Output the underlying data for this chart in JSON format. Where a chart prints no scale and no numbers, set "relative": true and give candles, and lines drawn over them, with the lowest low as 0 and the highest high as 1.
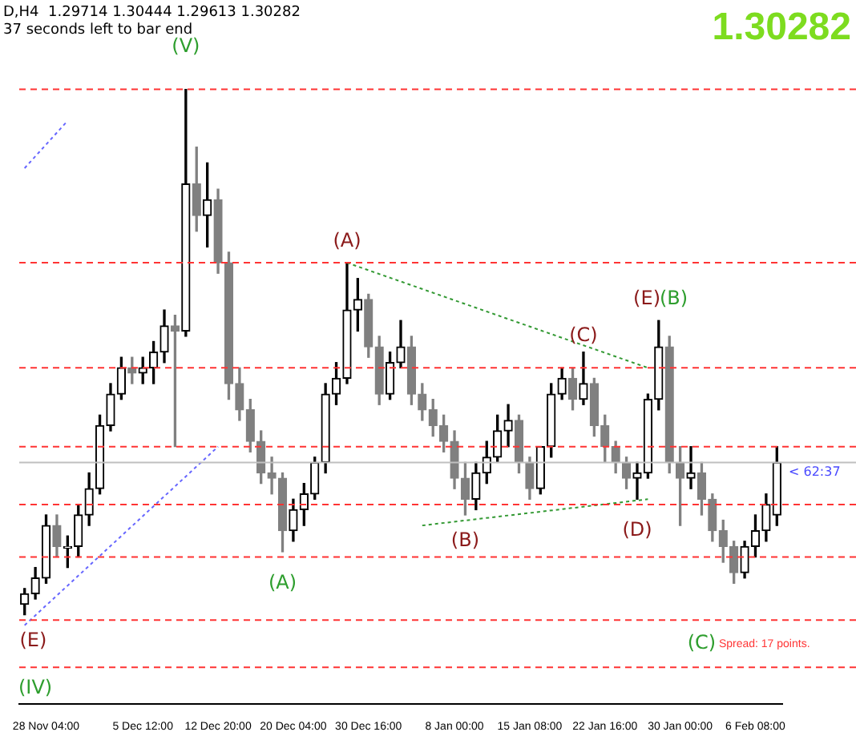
{
  "chart_data": {
    "type": "candlestick",
    "relative": true,
    "title": "D,H4  1.29714 1.30444 1.29613 1.30282",
    "subtitle": "37 seconds left to bar end",
    "colors": [
      "#000000",
      "#000000",
      "#000000",
      "#808080",
      "#000000",
      "#000000",
      "#000000",
      "#000000",
      "#000000",
      "#000000",
      "#808080",
      "#000000",
      "#000000",
      "#000000",
      "#808080",
      "#000000",
      "#808080",
      "#000000",
      "#808080",
      "#808080",
      "#808080",
      "#808080",
      "#808080",
      "#808080",
      "#808080",
      "#000000",
      "#000000",
      "#000000",
      "#000000",
      "#000000",
      "#000000",
      "#000000",
      "#808080",
      "#808080",
      "#000000",
      "#000000",
      "#808080",
      "#808080",
      "#808080",
      "#808080",
      "#808080",
      "#808080",
      "#000000",
      "#000000",
      "#000000",
      "#000000",
      "#808080",
      "#808080",
      "#000000",
      "#000000",
      "#000000",
      "#808080",
      "#000000",
      "#808080",
      "#808080",
      "#808080",
      "#808080",
      "#000000",
      "#000000",
      "#000000",
      "#808080",
      "#808080",
      "#000000",
      "#808080",
      "#808080",
      "#808080",
      "#808080",
      "#000000",
      "#000000",
      "#000000",
      "#000000"
    ],
    "grid": false,
    "legend": false,
    "tick_labels": "x",
    "line_style": "dotted",
    "categories": [
      null,
      null,
      "28 Nov 04:00",
      null,
      null,
      null,
      null,
      null,
      null,
      null,
      null,
      "5 Dec 12:00",
      null,
      null,
      null,
      null,
      null,
      null,
      "12 Dec 20:00",
      null,
      null,
      null,
      null,
      null,
      null,
      "20 Dec 04:00",
      null,
      null,
      null,
      null,
      null,
      null,
      "30 Dec 16:00",
      null,
      null,
      null,
      null,
      null,
      null,
      null,
      "8 Jan 00:00",
      null,
      null,
      null,
      null,
      null,
      null,
      "15 Jan 08:00",
      null,
      null,
      null,
      null,
      null,
      null,
      "22 Jan 16:00",
      null,
      null,
      null,
      null,
      null,
      null,
      "30 Jan 00:00",
      null,
      null,
      null,
      null,
      null,
      null,
      "6 Feb 08:00",
      null,
      null
    ],
    "ohlc": [
      [
        0.02,
        0.05,
        0,
        0.04
      ],
      [
        0.04,
        0.09,
        0.03,
        0.07
      ],
      [
        0.07,
        0.19,
        0.06,
        0.17
      ],
      [
        0.17,
        0.19,
        0.11,
        0.13
      ],
      [
        0.13,
        0.15,
        0.09,
        0.13
      ],
      [
        0.13,
        0.21,
        0.11,
        0.19
      ],
      [
        0.19,
        0.27,
        0.17,
        0.24
      ],
      [
        0.24,
        0.38,
        0.23,
        0.36
      ],
      [
        0.36,
        0.44,
        0.35,
        0.42
      ],
      [
        0.42,
        0.49,
        0.41,
        0.47
      ],
      [
        0.47,
        0.49,
        0.44,
        0.46
      ],
      [
        0.46,
        0.49,
        0.44,
        0.47
      ],
      [
        0.47,
        0.52,
        0.44,
        0.5
      ],
      [
        0.5,
        0.58,
        0.48,
        0.55
      ],
      [
        0.55,
        0.57,
        0.32,
        0.54
      ],
      [
        0.54,
        1,
        0.53,
        0.82
      ],
      [
        0.82,
        0.89,
        0.73,
        0.76
      ],
      [
        0.76,
        0.86,
        0.7,
        0.79
      ],
      [
        0.79,
        0.81,
        0.65,
        0.67
      ],
      [
        0.67,
        0.69,
        0.41,
        0.44
      ],
      [
        0.44,
        0.47,
        0.37,
        0.39
      ],
      [
        0.39,
        0.41,
        0.31,
        0.33
      ],
      [
        0.33,
        0.35,
        0.25,
        0.27
      ],
      [
        0.27,
        0.3,
        0.23,
        0.26
      ],
      [
        0.26,
        0.27,
        0.12,
        0.16
      ],
      [
        0.16,
        0.22,
        0.14,
        0.2
      ],
      [
        0.2,
        0.25,
        0.17,
        0.23
      ],
      [
        0.23,
        0.3,
        0.22,
        0.29
      ],
      [
        0.29,
        0.44,
        0.27,
        0.42
      ],
      [
        0.42,
        0.48,
        0.4,
        0.45
      ],
      [
        0.45,
        0.67,
        0.44,
        0.58
      ],
      [
        0.58,
        0.64,
        0.54,
        0.6
      ],
      [
        0.6,
        0.61,
        0.49,
        0.51
      ],
      [
        0.51,
        0.53,
        0.4,
        0.42
      ],
      [
        0.42,
        0.5,
        0.41,
        0.48
      ],
      [
        0.48,
        0.56,
        0.47,
        0.51
      ],
      [
        0.51,
        0.53,
        0.4,
        0.42
      ],
      [
        0.42,
        0.44,
        0.37,
        0.39
      ],
      [
        0.39,
        0.41,
        0.34,
        0.36
      ],
      [
        0.36,
        0.38,
        0.31,
        0.33
      ],
      [
        0.33,
        0.35,
        0.24,
        0.26
      ],
      [
        0.26,
        0.29,
        0.19,
        0.22
      ],
      [
        0.22,
        0.29,
        0.2,
        0.27
      ],
      [
        0.27,
        0.33,
        0.25,
        0.3
      ],
      [
        0.3,
        0.38,
        0.29,
        0.35
      ],
      [
        0.35,
        0.4,
        0.32,
        0.37
      ],
      [
        0.37,
        0.38,
        0.27,
        0.29
      ],
      [
        0.29,
        0.3,
        0.22,
        0.24
      ],
      [
        0.24,
        0.32,
        0.23,
        0.32
      ],
      [
        0.32,
        0.44,
        0.3,
        0.42
      ],
      [
        0.42,
        0.47,
        0.41,
        0.45
      ],
      [
        0.45,
        0.47,
        0.39,
        0.41
      ],
      [
        0.41,
        0.5,
        0.4,
        0.44
      ],
      [
        0.44,
        0.45,
        0.34,
        0.36
      ],
      [
        0.36,
        0.38,
        0.29,
        0.32
      ],
      [
        0.32,
        0.33,
        0.27,
        0.29
      ],
      [
        0.29,
        0.3,
        0.24,
        0.26
      ],
      [
        0.26,
        0.29,
        0.22,
        0.27
      ],
      [
        0.27,
        0.42,
        0.26,
        0.41
      ],
      [
        0.41,
        0.56,
        0.39,
        0.51
      ],
      [
        0.51,
        0.53,
        0.27,
        0.29
      ],
      [
        0.29,
        0.32,
        0.17,
        0.26
      ],
      [
        0.26,
        0.32,
        0.24,
        0.27
      ],
      [
        0.27,
        0.29,
        0.19,
        0.22
      ],
      [
        0.22,
        0.23,
        0.14,
        0.16
      ],
      [
        0.16,
        0.18,
        0.1,
        0.13
      ],
      [
        0.13,
        0.14,
        0.06,
        0.08
      ],
      [
        0.08,
        0.14,
        0.07,
        0.13
      ],
      [
        0.13,
        0.19,
        0.11,
        0.16
      ],
      [
        0.16,
        0.23,
        0.14,
        0.21
      ],
      [
        0.19,
        0.32,
        0.17,
        0.29
      ]
    ],
    "series": [
      {
        "type": "line",
        "color": "#339933",
        "values": [
          null,
          null,
          null,
          null,
          null,
          null,
          null,
          null,
          null,
          null,
          null,
          null,
          null,
          null,
          null,
          null,
          null,
          null,
          null,
          null,
          null,
          null,
          null,
          null,
          null,
          null,
          null,
          null,
          null,
          null,
          0.67,
          null,
          null,
          null,
          null,
          null,
          null,
          null,
          null,
          null,
          null,
          null,
          null,
          null,
          null,
          null,
          null,
          null,
          null,
          null,
          null,
          null,
          null,
          null,
          null,
          null,
          null,
          null,
          0.47,
          null,
          null,
          null,
          null,
          null,
          null,
          null,
          null,
          null,
          null,
          null,
          null
        ]
      },
      {
        "type": "line",
        "color": "#339933",
        "values": [
          null,
          null,
          null,
          null,
          null,
          null,
          null,
          null,
          null,
          null,
          null,
          null,
          null,
          null,
          null,
          null,
          null,
          null,
          null,
          null,
          null,
          null,
          null,
          null,
          null,
          null,
          null,
          null,
          null,
          null,
          null,
          null,
          null,
          null,
          null,
          null,
          null,
          0.17,
          null,
          null,
          null,
          null,
          null,
          null,
          null,
          null,
          null,
          null,
          null,
          null,
          null,
          null,
          null,
          null,
          null,
          null,
          null,
          null,
          0.22,
          null,
          null,
          null,
          null,
          null,
          null,
          null,
          null,
          null,
          null,
          null,
          null
        ]
      },
      {
        "type": "line",
        "color": "#6666ff",
        "values": [
          -0.02,
          null,
          null,
          null,
          null,
          null,
          null,
          null,
          null,
          null,
          null,
          null,
          null,
          null,
          null,
          null,
          null,
          null,
          0.32,
          null,
          null,
          null,
          null,
          null,
          null,
          null,
          null,
          null,
          null,
          null,
          null,
          null,
          null,
          null,
          null,
          null,
          null,
          null,
          null,
          null,
          null,
          null,
          null,
          null,
          null,
          null,
          null,
          null,
          null,
          null,
          null,
          null,
          null,
          null,
          null,
          null,
          null,
          null,
          null,
          null,
          null,
          null,
          null,
          null,
          null,
          null,
          null,
          null,
          null,
          null,
          null
        ]
      },
      {
        "type": "line",
        "color": "#6666ff",
        "values": [
          0.85,
          null,
          null,
          null,
          0.94,
          null,
          null,
          null,
          null,
          null,
          null,
          null,
          null,
          null,
          null,
          null,
          null,
          null,
          null,
          null,
          null,
          null,
          null,
          null,
          null,
          null,
          null,
          null,
          null,
          null,
          null,
          null,
          null,
          null,
          null,
          null,
          null,
          null,
          null,
          null,
          null,
          null,
          null,
          null,
          null,
          null,
          null,
          null,
          null,
          null,
          null,
          null,
          null,
          null,
          null,
          null,
          null,
          null,
          null,
          null,
          null,
          null,
          null,
          null,
          null,
          null,
          null,
          null,
          null,
          null,
          null
        ]
      }
    ],
    "ref_lines": [
      {
        "axis": "y",
        "value": 1,
        "color": "#ff3333",
        "line_style": "dashed"
      },
      {
        "axis": "y",
        "value": 0.67,
        "color": "#ff3333",
        "line_style": "dashed"
      },
      {
        "axis": "y",
        "value": 0.47,
        "color": "#ff3333",
        "line_style": "dashed"
      },
      {
        "axis": "y",
        "value": 0.32,
        "color": "#ff3333",
        "line_style": "dashed"
      },
      {
        "axis": "y",
        "value": 0.21,
        "color": "#ff3333",
        "line_style": "dashed"
      },
      {
        "axis": "y",
        "value": 0.11,
        "color": "#ff3333",
        "line_style": "dashed"
      },
      {
        "axis": "y",
        "value": -0.01,
        "color": "#ff3333",
        "line_style": "dashed"
      },
      {
        "axis": "y",
        "value": -0.1,
        "color": "#ff3333",
        "line_style": "dashed"
      },
      {
        "axis": "y",
        "value": 0.29,
        "color": "#c0c0c0",
        "line_style": "solid"
      }
    ],
    "annotations": [
      "(V)",
      "(A)",
      "(C)",
      "(E)",
      "(B)",
      "(E)",
      "(A)",
      "(B)",
      "(D)",
      "(C)",
      "(IV)",
      "1.30282",
      "Spread: 17 points.",
      "< 62:37"
    ]
  }
}
